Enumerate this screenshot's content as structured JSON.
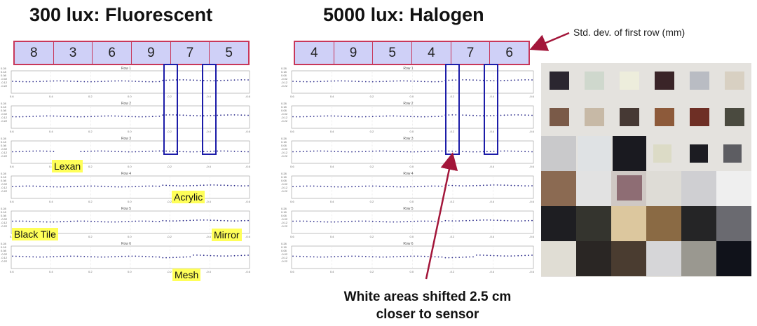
{
  "left": {
    "title": "300 lux: Fluorescent",
    "std_devs": [
      "8",
      "3",
      "6",
      "9",
      "7",
      "5"
    ],
    "labels": {
      "lexan": "Lexan",
      "acrylic": "Acrylic",
      "black_tile": "Black Tile",
      "mirror": "Mirror",
      "mesh": "Mesh"
    }
  },
  "right": {
    "title": "5000 lux: Halogen",
    "std_devs": [
      "4",
      "9",
      "5",
      "4",
      "7",
      "6"
    ]
  },
  "annotation": "Std. dev. of first row (mm)",
  "bottom_text": [
    "White areas shifted 2.5 cm",
    "closer to sensor"
  ],
  "plots": {
    "row_titles": [
      "Row 1",
      "Row 2",
      "Row 3",
      "Row 4",
      "Row 5",
      "Row 6"
    ],
    "y_ticks": [
      "0.28",
      "0.18",
      "0.08",
      "-0.02",
      "-0.12",
      "-0.22"
    ],
    "x_ticks": [
      "0.6",
      "0.4",
      "0.2",
      "0.0",
      "-0.2",
      "-0.4",
      "-0.6"
    ]
  },
  "colors": {
    "grid_fill": "#cfd0f7",
    "grid_border": "#c8375a",
    "highlight": "#ffff59",
    "rect": "#1c1ca8",
    "dots": "#2a2a8a"
  }
}
